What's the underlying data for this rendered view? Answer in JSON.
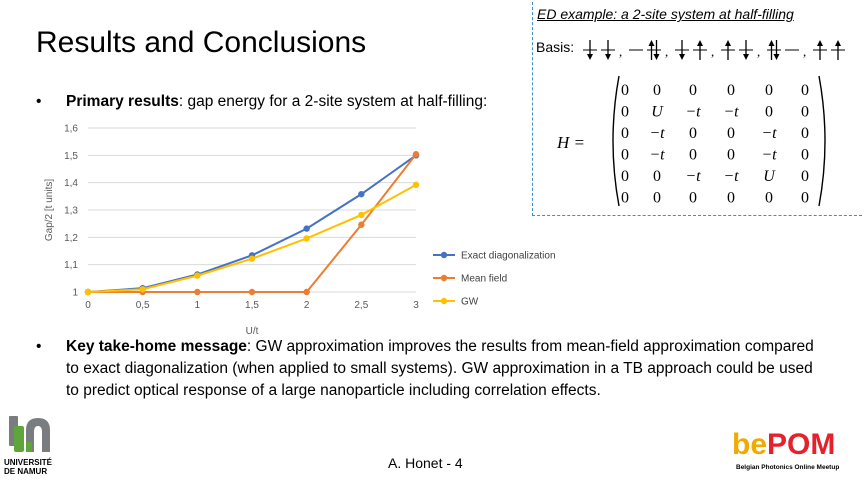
{
  "slide": {
    "title": "Results and Conclusions",
    "bullet1_bold": "Primary results",
    "bullet1_text": ": gap energy for a 2-site system at half-filling:",
    "bullet2_bold": "Key take-home message",
    "bullet2_text": ": GW approximation improves the results from mean-field approximation compared to exact diagonalization (when applied to small systems). GW approximation in a TB approach could be used to predict optical response of a large nanoparticle including correlation effects.",
    "bullet_symbol": "•",
    "footer": "A. Honet  - 4"
  },
  "ed_box": {
    "heading": "ED example: a 2-site system at half-filling",
    "basis_label": "Basis:",
    "matrix_label": "H =",
    "matrix": [
      [
        "0",
        "0",
        "0",
        "0",
        "0",
        "0"
      ],
      [
        "0",
        "U",
        "−t",
        "−t",
        "0",
        "0"
      ],
      [
        "0",
        "−t",
        "0",
        "0",
        "−t",
        "0"
      ],
      [
        "0",
        "−t",
        "0",
        "0",
        "−t",
        "0"
      ],
      [
        "0",
        "0",
        "−t",
        "−t",
        "U",
        "0"
      ],
      [
        "0",
        "0",
        "0",
        "0",
        "0",
        "0"
      ]
    ]
  },
  "logos": {
    "left_line1": "UNIVERSITÉ",
    "left_line2": "DE NAMUR",
    "right_word": "bePOM",
    "right_sub": "Belgian Photonics Online Meetup"
  },
  "chart_data": {
    "type": "line",
    "x": [
      0,
      0.5,
      1,
      1.5,
      2,
      2.5,
      3
    ],
    "x_tick_labels": [
      "0",
      "0,5",
      "1",
      "1,5",
      "2",
      "2,5",
      "3"
    ],
    "y_tick_values": [
      1,
      1.1,
      1.2,
      1.3,
      1.4,
      1.5,
      1.6
    ],
    "y_tick_labels": [
      "1",
      "1,1",
      "1,2",
      "1,3",
      "1,4",
      "1,5",
      "1,6"
    ],
    "xlabel": "U/t",
    "ylabel": "Gap/2 [t units]",
    "xlim": [
      0,
      3
    ],
    "ylim": [
      1,
      1.6
    ],
    "grid": "horizontal",
    "legend": "right",
    "series": [
      {
        "name": "Exact diagonalization",
        "color": "#4472c4",
        "values": [
          1.0,
          1.014,
          1.064,
          1.134,
          1.232,
          1.358,
          1.5
        ]
      },
      {
        "name": "Mean field",
        "color": "#ed7d31",
        "values": [
          1.0,
          1.0,
          1.0,
          1.0,
          1.0,
          1.246,
          1.504
        ]
      },
      {
        "name": "GW",
        "color": "#ffc000",
        "values": [
          1.0,
          1.01,
          1.06,
          1.122,
          1.196,
          1.282,
          1.392
        ]
      }
    ]
  }
}
